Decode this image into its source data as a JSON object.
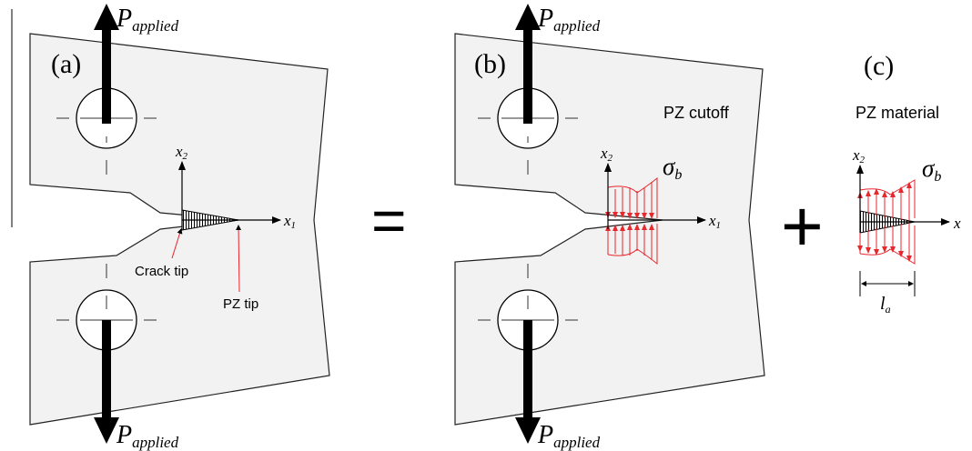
{
  "colors": {
    "ink": "#000000",
    "body_fill": "#f2f2f2",
    "stress": "#e8262c",
    "background": "#ffffff"
  },
  "panel_a": {
    "label": "(a)",
    "load_top": {
      "symbol": "P",
      "subscript": "applied"
    },
    "load_bottom": {
      "symbol": "P",
      "subscript": "applied"
    },
    "axis_x1": {
      "symbol": "x",
      "subscript": "1"
    },
    "axis_x2": {
      "symbol": "x",
      "subscript": "2"
    },
    "crack_tip_label": "Crack tip",
    "pz_tip_label": "PZ tip"
  },
  "equals_sign": "=",
  "panel_b": {
    "label": "(b)",
    "title": "PZ cutoff",
    "load_top": {
      "symbol": "P",
      "subscript": "applied"
    },
    "load_bottom": {
      "symbol": "P",
      "subscript": "applied"
    },
    "axis_x1": {
      "symbol": "x",
      "subscript": "1"
    },
    "axis_x2": {
      "symbol": "x",
      "subscript": "2"
    },
    "stress": {
      "symbol": "σ",
      "subscript": "b"
    }
  },
  "plus_sign": "+",
  "panel_c": {
    "label": "(c)",
    "title": "PZ material",
    "axis_x1": {
      "symbol": "x",
      "subscript": ""
    },
    "axis_x2": {
      "symbol": "x",
      "subscript": "2"
    },
    "stress": {
      "symbol": "σ",
      "subscript": "b"
    },
    "length": {
      "symbol": "l",
      "subscript": "a"
    }
  }
}
